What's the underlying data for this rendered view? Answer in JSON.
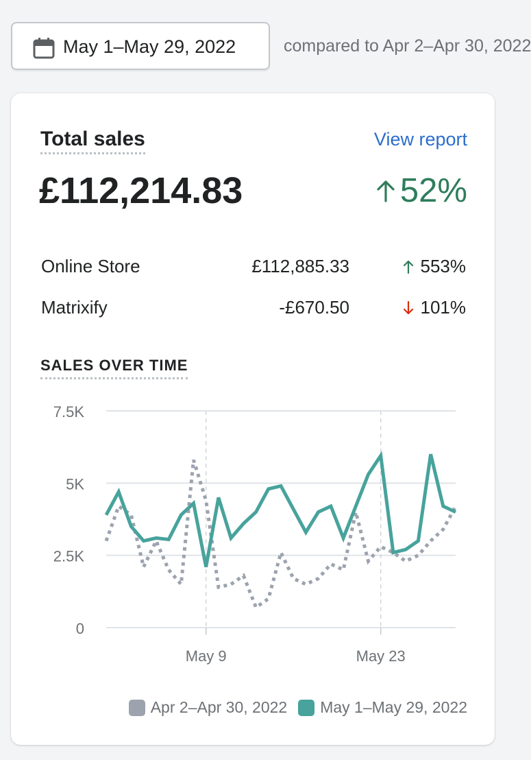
{
  "date_picker": {
    "icon": "calendar-icon",
    "label": "May 1–May 29, 2022"
  },
  "comparison": {
    "text": "compared to Apr 2–Apr 30, 2022"
  },
  "card": {
    "title": "Total sales",
    "view_report": "View report",
    "total": "£112,214.83",
    "change": "52%",
    "change_direction": "up",
    "breakdown": [
      {
        "name": "Online Store",
        "amount": "£112,885.33",
        "change": "553%",
        "direction": "up"
      },
      {
        "name": "Matrixify",
        "amount": "-£670.50",
        "change": "101%",
        "direction": "down"
      }
    ],
    "section_title": "SALES OVER TIME"
  },
  "colors": {
    "positive": "#2f7d5b",
    "negative": "#d82c0d",
    "current_series": "#47a39c",
    "previous_series": "#9ca3ae",
    "link": "#2c6ecb"
  },
  "chart_data": {
    "type": "line",
    "xlabel": "",
    "ylabel": "",
    "ylim": [
      0,
      7500
    ],
    "y_ticks": [
      0,
      2500,
      5000,
      7500
    ],
    "y_tick_labels": [
      "0",
      "2.5K",
      "5K",
      "7.5K"
    ],
    "x_tick_labels": [
      {
        "day": 9,
        "label": "May 9"
      },
      {
        "day": 23,
        "label": "May 23"
      }
    ],
    "x_days": [
      1,
      2,
      3,
      4,
      5,
      6,
      7,
      8,
      9,
      10,
      11,
      12,
      13,
      14,
      15,
      16,
      17,
      18,
      19,
      20,
      21,
      22,
      23,
      24,
      25,
      26,
      27,
      28,
      29
    ],
    "grid": "horizontal lines at y ticks; dashed vertical lines at x ticks",
    "legend_position": "bottom-right",
    "series": [
      {
        "name": "Apr 2–Apr 30, 2022",
        "style": "dotted",
        "values": [
          3000,
          4200,
          3900,
          2100,
          3000,
          2000,
          1500,
          5800,
          4400,
          1400,
          1500,
          1800,
          700,
          1000,
          2600,
          1700,
          1500,
          1700,
          2200,
          2000,
          4000,
          2300,
          2800,
          2600,
          2300,
          2500,
          3000,
          3400,
          4200
        ]
      },
      {
        "name": "May 1–May 29, 2022",
        "style": "solid",
        "values": [
          3900,
          4700,
          3500,
          3000,
          3100,
          3050,
          3900,
          4300,
          2100,
          4500,
          3100,
          3600,
          4000,
          4800,
          4900,
          4100,
          3300,
          4000,
          4200,
          3100,
          4200,
          5300,
          5950,
          2600,
          2700,
          3000,
          6000,
          4200,
          4000
        ]
      }
    ]
  }
}
